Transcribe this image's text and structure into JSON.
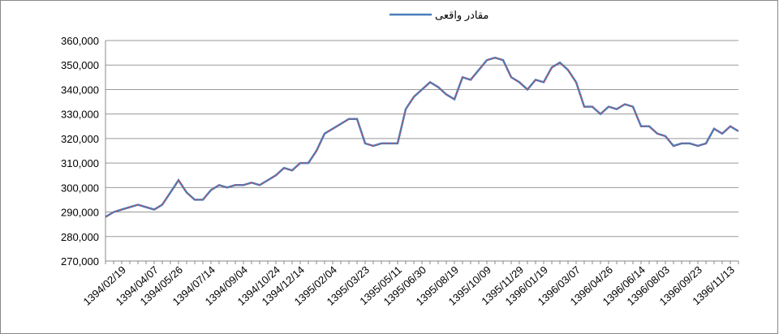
{
  "chart_data": {
    "type": "line",
    "categories": [
      null,
      null,
      "1394/02/19",
      null,
      null,
      null,
      "1394/04/07",
      null,
      null,
      "1394/05/26",
      null,
      null,
      null,
      "1394/07/14",
      null,
      null,
      null,
      "1394/09/04",
      null,
      null,
      null,
      "1394/10/24",
      null,
      null,
      "1394/12/14",
      null,
      null,
      null,
      "1395/02/04",
      null,
      null,
      null,
      "1395/03/23",
      null,
      null,
      null,
      "1395/05/11",
      null,
      null,
      "1395/06/30",
      null,
      null,
      null,
      "1395/08/19",
      null,
      null,
      null,
      "1395/10/09",
      null,
      null,
      null,
      "1395/11/29",
      null,
      null,
      "1396/01/19",
      null,
      null,
      null,
      "1396/03/07",
      null,
      null,
      null,
      "1396/04/26",
      null,
      null,
      null,
      "1396/06/14",
      null,
      null,
      "1396/08/03",
      null,
      null,
      null,
      "1396/09/23",
      null,
      null,
      null,
      "1396/11/13",
      null
    ],
    "series": [
      {
        "name": "مقادر واقعی",
        "color": "#4a7ebb",
        "values": [
          288000,
          290000,
          291000,
          292000,
          293000,
          292000,
          291000,
          293000,
          298000,
          303000,
          298000,
          295000,
          295000,
          299000,
          301000,
          300000,
          301000,
          301000,
          302000,
          301000,
          303000,
          305000,
          308000,
          307000,
          310000,
          310000,
          315000,
          322000,
          324000,
          326000,
          328000,
          328000,
          318000,
          317000,
          318000,
          318000,
          318000,
          332000,
          337000,
          340000,
          343000,
          341000,
          338000,
          336000,
          345000,
          344000,
          348000,
          352000,
          353000,
          352000,
          345000,
          343000,
          340000,
          344000,
          343000,
          349000,
          351000,
          348000,
          343000,
          333000,
          333000,
          330000,
          333000,
          332000,
          334000,
          333000,
          325000,
          325000,
          322000,
          321000,
          317000,
          318000,
          318000,
          317000,
          318000,
          324000,
          322000,
          325000,
          323000
        ]
      }
    ],
    "ylim": [
      270000,
      360000
    ],
    "yticks": [
      {
        "value": 270000,
        "label": "270,000"
      },
      {
        "value": 280000,
        "label": "280,000"
      },
      {
        "value": 290000,
        "label": "290,000"
      },
      {
        "value": 300000,
        "label": "300,000"
      },
      {
        "value": 310000,
        "label": "310,000"
      },
      {
        "value": 320000,
        "label": "320,000"
      },
      {
        "value": 330000,
        "label": "330,000"
      },
      {
        "value": 340000,
        "label": "340,000"
      },
      {
        "value": 350000,
        "label": "350,000"
      },
      {
        "value": 360000,
        "label": "360,000"
      }
    ],
    "grid": true,
    "legend": "top"
  }
}
